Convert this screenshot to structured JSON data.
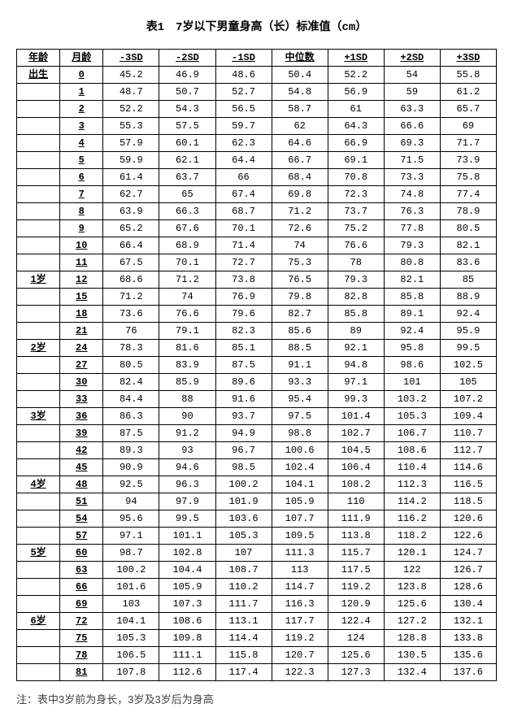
{
  "title": "表1　7岁以下男童身高（长）标准值（cm）",
  "headers": [
    "年龄",
    "月龄",
    "-3SD",
    "-2SD",
    "-1SD",
    "中位数",
    "+1SD",
    "+2SD",
    "+3SD"
  ],
  "note": "注：表中3岁前为身长，3岁及3岁后为身高",
  "rows": [
    {
      "age": "出生",
      "month": "0",
      "v": [
        "45.2",
        "46.9",
        "48.6",
        "50.4",
        "52.2",
        "54",
        "55.8"
      ]
    },
    {
      "age": "",
      "month": "1",
      "v": [
        "48.7",
        "50.7",
        "52.7",
        "54.8",
        "56.9",
        "59",
        "61.2"
      ]
    },
    {
      "age": "",
      "month": "2",
      "v": [
        "52.2",
        "54.3",
        "56.5",
        "58.7",
        "61",
        "63.3",
        "65.7"
      ]
    },
    {
      "age": "",
      "month": "3",
      "v": [
        "55.3",
        "57.5",
        "59.7",
        "62",
        "64.3",
        "66.6",
        "69"
      ]
    },
    {
      "age": "",
      "month": "4",
      "v": [
        "57.9",
        "60.1",
        "62.3",
        "64.6",
        "66.9",
        "69.3",
        "71.7"
      ]
    },
    {
      "age": "",
      "month": "5",
      "v": [
        "59.9",
        "62.1",
        "64.4",
        "66.7",
        "69.1",
        "71.5",
        "73.9"
      ]
    },
    {
      "age": "",
      "month": "6",
      "v": [
        "61.4",
        "63.7",
        "66",
        "68.4",
        "70.8",
        "73.3",
        "75.8"
      ]
    },
    {
      "age": "",
      "month": "7",
      "v": [
        "62.7",
        "65",
        "67.4",
        "69.8",
        "72.3",
        "74.8",
        "77.4"
      ]
    },
    {
      "age": "",
      "month": "8",
      "v": [
        "63.9",
        "66.3",
        "68.7",
        "71.2",
        "73.7",
        "76.3",
        "78.9"
      ]
    },
    {
      "age": "",
      "month": "9",
      "v": [
        "65.2",
        "67.6",
        "70.1",
        "72.6",
        "75.2",
        "77.8",
        "80.5"
      ]
    },
    {
      "age": "",
      "month": "10",
      "v": [
        "66.4",
        "68.9",
        "71.4",
        "74",
        "76.6",
        "79.3",
        "82.1"
      ]
    },
    {
      "age": "",
      "month": "11",
      "v": [
        "67.5",
        "70.1",
        "72.7",
        "75.3",
        "78",
        "80.8",
        "83.6"
      ]
    },
    {
      "age": "1岁",
      "month": "12",
      "v": [
        "68.6",
        "71.2",
        "73.8",
        "76.5",
        "79.3",
        "82.1",
        "85"
      ]
    },
    {
      "age": "",
      "month": "15",
      "v": [
        "71.2",
        "74",
        "76.9",
        "79.8",
        "82.8",
        "85.8",
        "88.9"
      ]
    },
    {
      "age": "",
      "month": "18",
      "v": [
        "73.6",
        "76.6",
        "79.6",
        "82.7",
        "85.8",
        "89.1",
        "92.4"
      ]
    },
    {
      "age": "",
      "month": "21",
      "v": [
        "76",
        "79.1",
        "82.3",
        "85.6",
        "89",
        "92.4",
        "95.9"
      ]
    },
    {
      "age": "2岁",
      "month": "24",
      "v": [
        "78.3",
        "81.6",
        "85.1",
        "88.5",
        "92.1",
        "95.8",
        "99.5"
      ]
    },
    {
      "age": "",
      "month": "27",
      "v": [
        "80.5",
        "83.9",
        "87.5",
        "91.1",
        "94.8",
        "98.6",
        "102.5"
      ]
    },
    {
      "age": "",
      "month": "30",
      "v": [
        "82.4",
        "85.9",
        "89.6",
        "93.3",
        "97.1",
        "101",
        "105"
      ]
    },
    {
      "age": "",
      "month": "33",
      "v": [
        "84.4",
        "88",
        "91.6",
        "95.4",
        "99.3",
        "103.2",
        "107.2"
      ]
    },
    {
      "age": "3岁",
      "month": "36",
      "v": [
        "86.3",
        "90",
        "93.7",
        "97.5",
        "101.4",
        "105.3",
        "109.4"
      ]
    },
    {
      "age": "",
      "month": "39",
      "v": [
        "87.5",
        "91.2",
        "94.9",
        "98.8",
        "102.7",
        "106.7",
        "110.7"
      ]
    },
    {
      "age": "",
      "month": "42",
      "v": [
        "89.3",
        "93",
        "96.7",
        "100.6",
        "104.5",
        "108.6",
        "112.7"
      ]
    },
    {
      "age": "",
      "month": "45",
      "v": [
        "90.9",
        "94.6",
        "98.5",
        "102.4",
        "106.4",
        "110.4",
        "114.6"
      ]
    },
    {
      "age": "4岁",
      "month": "48",
      "v": [
        "92.5",
        "96.3",
        "100.2",
        "104.1",
        "108.2",
        "112.3",
        "116.5"
      ]
    },
    {
      "age": "",
      "month": "51",
      "v": [
        "94",
        "97.9",
        "101.9",
        "105.9",
        "110",
        "114.2",
        "118.5"
      ]
    },
    {
      "age": "",
      "month": "54",
      "v": [
        "95.6",
        "99.5",
        "103.6",
        "107.7",
        "111.9",
        "116.2",
        "120.6"
      ]
    },
    {
      "age": "",
      "month": "57",
      "v": [
        "97.1",
        "101.1",
        "105.3",
        "109.5",
        "113.8",
        "118.2",
        "122.6"
      ]
    },
    {
      "age": "5岁",
      "month": "60",
      "v": [
        "98.7",
        "102.8",
        "107",
        "111.3",
        "115.7",
        "120.1",
        "124.7"
      ]
    },
    {
      "age": "",
      "month": "63",
      "v": [
        "100.2",
        "104.4",
        "108.7",
        "113",
        "117.5",
        "122",
        "126.7"
      ]
    },
    {
      "age": "",
      "month": "66",
      "v": [
        "101.6",
        "105.9",
        "110.2",
        "114.7",
        "119.2",
        "123.8",
        "128.6"
      ]
    },
    {
      "age": "",
      "month": "69",
      "v": [
        "103",
        "107.3",
        "111.7",
        "116.3",
        "120.9",
        "125.6",
        "130.4"
      ]
    },
    {
      "age": "6岁",
      "month": "72",
      "v": [
        "104.1",
        "108.6",
        "113.1",
        "117.7",
        "122.4",
        "127.2",
        "132.1"
      ]
    },
    {
      "age": "",
      "month": "75",
      "v": [
        "105.3",
        "109.8",
        "114.4",
        "119.2",
        "124",
        "128.8",
        "133.8"
      ]
    },
    {
      "age": "",
      "month": "78",
      "v": [
        "106.5",
        "111.1",
        "115.8",
        "120.7",
        "125.6",
        "130.5",
        "135.6"
      ]
    },
    {
      "age": "",
      "month": "81",
      "v": [
        "107.8",
        "112.6",
        "117.4",
        "122.3",
        "127.3",
        "132.4",
        "137.6"
      ]
    }
  ]
}
